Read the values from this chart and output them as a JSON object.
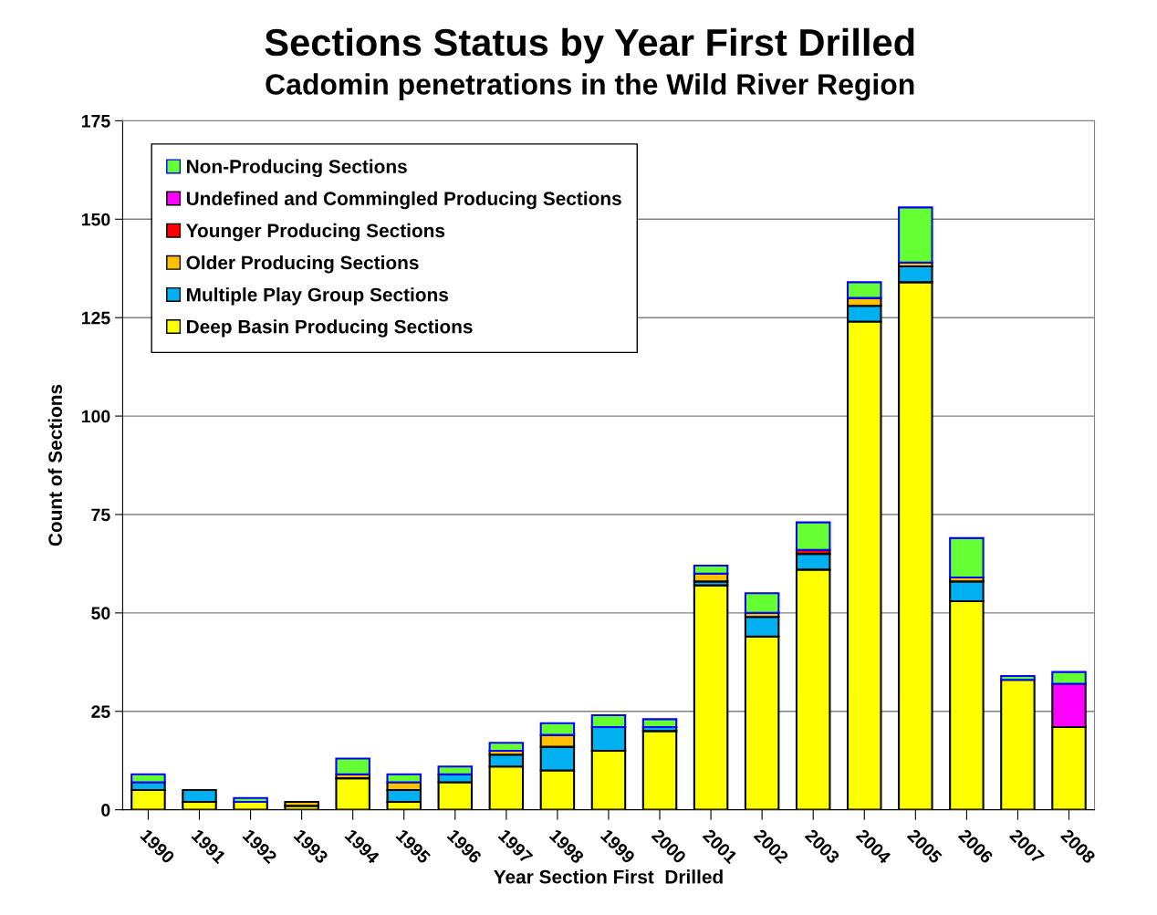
{
  "chart_data": {
    "type": "bar",
    "stacked": true,
    "title": "Sections Status by Year First Drilled",
    "subtitle": "Cadomin penetrations in the Wild River Region",
    "xlabel": "Year Section First  Drilled",
    "ylabel": "Count of Sections",
    "categories": [
      "1990",
      "1991",
      "1992",
      "1993",
      "1994",
      "1995",
      "1996",
      "1997",
      "1998",
      "1999",
      "2000",
      "2001",
      "2002",
      "2003",
      "2004",
      "2005",
      "2006",
      "2007",
      "2008"
    ],
    "series": [
      {
        "name": "Deep Basin Producing Sections",
        "color": "#ffff00",
        "values": [
          5,
          2,
          2,
          1,
          8,
          2,
          7,
          11,
          10,
          15,
          20,
          57,
          44,
          61,
          124,
          134,
          53,
          33,
          21
        ]
      },
      {
        "name": "Multiple Play Group Sections",
        "color": "#00b0f0",
        "values": [
          2,
          3,
          0,
          0,
          0,
          3,
          2,
          3,
          6,
          6,
          1,
          1,
          5,
          4,
          4,
          4,
          5,
          0,
          0
        ]
      },
      {
        "name": "Older Producing Sections",
        "color": "#ffc000",
        "values": [
          0,
          0,
          0,
          1,
          1,
          2,
          0,
          1,
          3,
          0,
          0,
          2,
          1,
          0,
          2,
          1,
          1,
          0,
          0
        ]
      },
      {
        "name": "Younger Producing Sections",
        "color": "#ff0000",
        "values": [
          0,
          0,
          0,
          0,
          0,
          0,
          0,
          0,
          0,
          0,
          0,
          0,
          0,
          1,
          0,
          0,
          0,
          0,
          0
        ]
      },
      {
        "name": "Undefined and Commingled Producing Sections",
        "color": "#ff00ff",
        "values": [
          0,
          0,
          0,
          0,
          0,
          0,
          0,
          0,
          0,
          0,
          0,
          0,
          0,
          0,
          0,
          0,
          0,
          0,
          11
        ]
      },
      {
        "name": "Non-Producing Sections",
        "color": "#66ff33",
        "values": [
          2,
          0,
          1,
          0,
          4,
          2,
          2,
          2,
          3,
          3,
          2,
          2,
          5,
          7,
          4,
          14,
          10,
          1,
          3
        ]
      }
    ],
    "ylim": [
      0,
      175
    ],
    "yticks": [
      0,
      25,
      50,
      75,
      100,
      125,
      150,
      175
    ],
    "grid": "y",
    "legend": "top left"
  }
}
